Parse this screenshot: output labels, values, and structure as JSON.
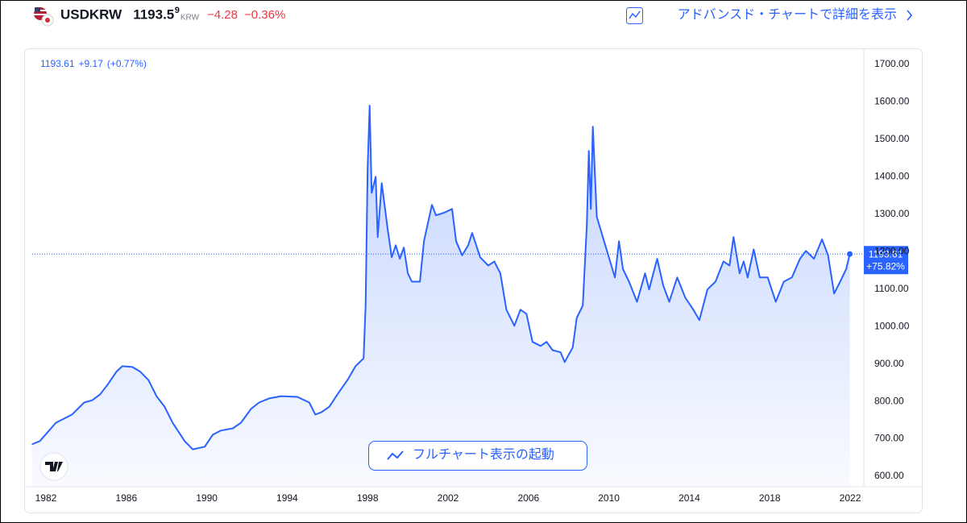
{
  "header": {
    "symbol": "USDKRW",
    "price": "1193.5",
    "price_pip": "9",
    "currency": "KRW",
    "change": "−4.28",
    "change_percent": "−0.36%",
    "link": "アドバンスド・チャートで詳細を表示"
  },
  "chart_data": {
    "type": "area",
    "info": {
      "last": "1193.61",
      "change": "+9.17",
      "change_percent": "(+0.77%)"
    },
    "x": [
      1981.3,
      1981.7,
      1982.5,
      1983.3,
      1983.9,
      1984.3,
      1984.7,
      1985.1,
      1985.5,
      1985.8,
      1986.3,
      1986.7,
      1987.1,
      1987.5,
      1987.9,
      1988.3,
      1988.9,
      1989.3,
      1989.9,
      1990.3,
      1990.7,
      1991.3,
      1991.7,
      1992.2,
      1992.6,
      1993.1,
      1993.7,
      1994.5,
      1995.1,
      1995.4,
      1995.7,
      1996.1,
      1996.5,
      1997.0,
      1997.4,
      1997.8,
      1997.9,
      1998.0,
      1998.1,
      1998.2,
      1998.4,
      1998.5,
      1998.7,
      1999.0,
      1999.2,
      1999.4,
      1999.6,
      1999.8,
      2000.0,
      2000.2,
      2000.6,
      2000.8,
      2001.2,
      2001.4,
      2001.8,
      2002.2,
      2002.4,
      2002.7,
      2003.0,
      2003.2,
      2003.6,
      2004.0,
      2004.3,
      2004.6,
      2004.9,
      2005.3,
      2005.6,
      2005.9,
      2006.2,
      2006.6,
      2006.9,
      2007.2,
      2007.6,
      2007.8,
      2008.2,
      2008.4,
      2008.7,
      2008.9,
      2009.0,
      2009.1,
      2009.2,
      2009.4,
      2009.7,
      2010.0,
      2010.3,
      2010.5,
      2010.7,
      2011.0,
      2011.4,
      2011.8,
      2012.0,
      2012.4,
      2012.7,
      2013.0,
      2013.4,
      2013.8,
      2014.2,
      2014.5,
      2014.9,
      2015.3,
      2015.7,
      2016.0,
      2016.2,
      2016.5,
      2016.7,
      2016.9,
      2017.2,
      2017.5,
      2017.9,
      2018.3,
      2018.7,
      2019.1,
      2019.5,
      2019.8,
      2020.2,
      2020.6,
      2020.9,
      2021.2,
      2021.5,
      2021.8,
      2021.98
    ],
    "values": [
      685,
      694,
      743,
      765,
      797,
      803,
      819,
      847,
      879,
      894,
      892,
      879,
      857,
      814,
      786,
      743,
      694,
      672,
      679,
      711,
      722,
      728,
      743,
      780,
      797,
      808,
      814,
      812,
      797,
      765,
      771,
      786,
      819,
      857,
      894,
      915,
      1056,
      1422,
      1590,
      1357,
      1400,
      1239,
      1383,
      1260,
      1185,
      1217,
      1181,
      1211,
      1142,
      1120,
      1120,
      1228,
      1325,
      1297,
      1304,
      1314,
      1228,
      1190,
      1217,
      1250,
      1185,
      1163,
      1174,
      1142,
      1045,
      1002,
      1045,
      1034,
      959,
      948,
      959,
      937,
      931,
      905,
      944,
      1023,
      1056,
      1271,
      1469,
      1314,
      1534,
      1293,
      1239,
      1185,
      1131,
      1228,
      1153,
      1120,
      1066,
      1142,
      1099,
      1181,
      1110,
      1066,
      1131,
      1077,
      1045,
      1017,
      1099,
      1120,
      1174,
      1163,
      1239,
      1142,
      1174,
      1131,
      1206,
      1131,
      1131,
      1066,
      1120,
      1131,
      1181,
      1202,
      1181,
      1233,
      1190,
      1088,
      1120,
      1153,
      1193.61
    ],
    "color": "#2962ff",
    "xlim": [
      1981.32,
      2022.68
    ],
    "ylim": [
      572,
      1741
    ],
    "xticks": [
      1982,
      1986,
      1990,
      1994,
      1998,
      2002,
      2006,
      2010,
      2014,
      2018,
      2022
    ],
    "yticks": [
      {
        "value": 600,
        "label": "600.00"
      },
      {
        "value": 700,
        "label": "700.00"
      },
      {
        "value": 800,
        "label": "800.00"
      },
      {
        "value": 900,
        "label": "900.00"
      },
      {
        "value": 1000,
        "label": "1000.00"
      },
      {
        "value": 1100,
        "label": "1100.00"
      },
      {
        "value": 1200,
        "label": "1200.00"
      },
      {
        "value": 1300,
        "label": "1300.00"
      },
      {
        "value": 1400,
        "label": "1400.00"
      },
      {
        "value": 1500,
        "label": "1500.00"
      },
      {
        "value": 1600,
        "label": "1600.00"
      },
      {
        "value": 1700,
        "label": "1700.00"
      }
    ],
    "grid": false,
    "last_label": "1193.61",
    "last_change": "+75.82%",
    "button": "フルチャート表示の起動"
  }
}
